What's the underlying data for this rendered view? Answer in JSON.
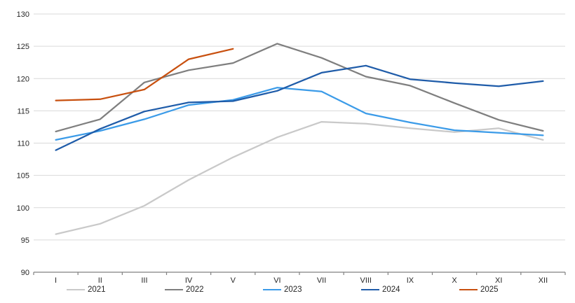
{
  "chart_data": {
    "type": "line",
    "title": "",
    "xlabel": "",
    "ylabel": "",
    "categories": [
      "I",
      "II",
      "III",
      "IV",
      "V",
      "VI",
      "VII",
      "VIII",
      "IX",
      "X",
      "XI",
      "XII"
    ],
    "y_axis": {
      "min": 90,
      "max": 130,
      "step": 5,
      "tick_labels": [
        "90",
        "95",
        "100",
        "105",
        "110",
        "115",
        "120",
        "125",
        "130"
      ]
    },
    "grid": "horizontal",
    "legend_position": "bottom",
    "series": [
      {
        "name": "2021",
        "color": "#c9c9c9",
        "values": [
          95.9,
          97.5,
          100.3,
          104.3,
          107.8,
          110.9,
          113.3,
          113.0,
          112.3,
          111.7,
          112.3,
          110.5
        ]
      },
      {
        "name": "2022",
        "color": "#7f7f7f",
        "values": [
          111.8,
          113.7,
          119.4,
          121.3,
          122.4,
          125.4,
          123.2,
          120.3,
          118.9,
          116.2,
          113.6,
          111.9
        ]
      },
      {
        "name": "2023",
        "color": "#3b9be8",
        "values": [
          110.5,
          111.9,
          113.7,
          115.9,
          116.7,
          118.6,
          118.0,
          114.6,
          113.2,
          112.0,
          111.6,
          111.2
        ]
      },
      {
        "name": "2024",
        "color": "#1f5ca9",
        "values": [
          108.9,
          112.2,
          114.9,
          116.3,
          116.5,
          118.1,
          120.9,
          122.0,
          119.9,
          119.3,
          118.8,
          119.6
        ]
      },
      {
        "name": "2025",
        "color": "#c8500f",
        "values": [
          116.6,
          116.8,
          118.3,
          123.0,
          124.6
        ]
      }
    ],
    "colors": {
      "gridline": "#d9d9d9",
      "axis": "#808080",
      "tick_text": "#262626",
      "background": "#ffffff"
    }
  }
}
